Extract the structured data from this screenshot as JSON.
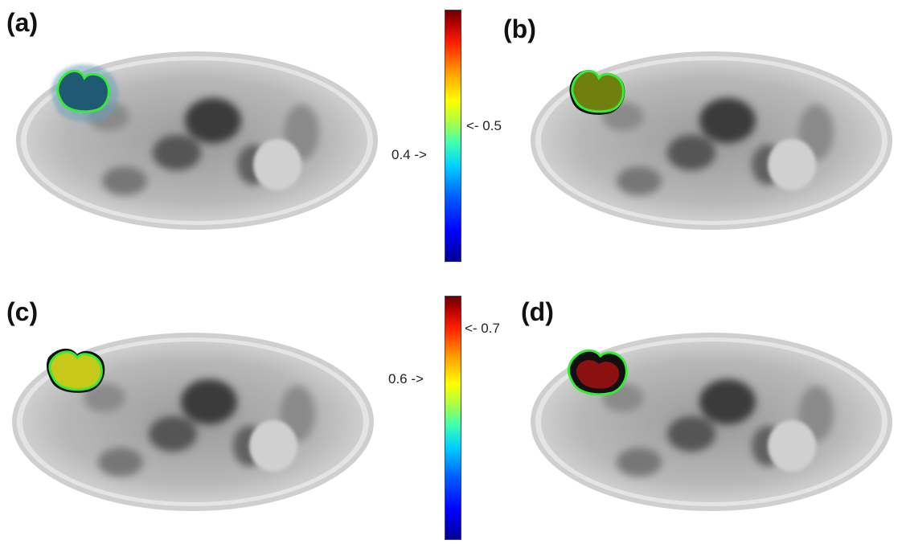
{
  "panels": [
    {
      "label": "(a)",
      "overlay_color": "#1f5a72"
    },
    {
      "label": "(b)",
      "overlay_color": "#6f7f10"
    },
    {
      "label": "(c)",
      "overlay_color": "#c8c81a"
    },
    {
      "label": "(d)",
      "overlay_color": "#8b1010"
    }
  ],
  "contour_color": "#33ee33",
  "colorbars": [
    {
      "name": "top",
      "range_hint": "0.4-0.5",
      "markers": [
        {
          "text": "<- 0.5"
        },
        {
          "text": "0.4 ->"
        }
      ]
    },
    {
      "name": "bottom",
      "range_hint": "0.6-0.7",
      "markers": [
        {
          "text": "<- 0.7"
        },
        {
          "text": "0.6 ->"
        }
      ]
    }
  ]
}
